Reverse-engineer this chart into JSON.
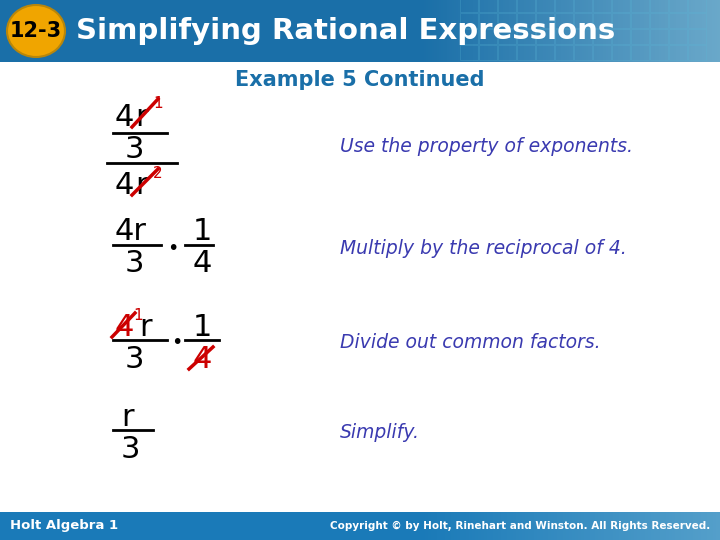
{
  "title_badge": "12-3",
  "title_text": "Simplifying Rational Expressions",
  "subtitle": "Example 5 Continued",
  "header_bg_color": "#1a6fa8",
  "badge_color": "#f0a500",
  "badge_text_color": "#000000",
  "title_text_color": "#ffffff",
  "subtitle_color": "#1a6fa8",
  "body_bg_color": "#ffffff",
  "red_color": "#cc0000",
  "blue_italic_color": "#3a3ab0",
  "footer_bg_color": "#1a7ab8",
  "footer_left": "Holt Algebra 1",
  "footer_right": "Copyright © by Holt, Rinehart and Winston. All Rights Reserved.",
  "footer_text_color": "#ffffff",
  "desc1": "Use the property of exponents.",
  "desc2": "Multiply by the reciprocal of 4.",
  "desc3": "Divide out common factors.",
  "desc4": "Simplify."
}
